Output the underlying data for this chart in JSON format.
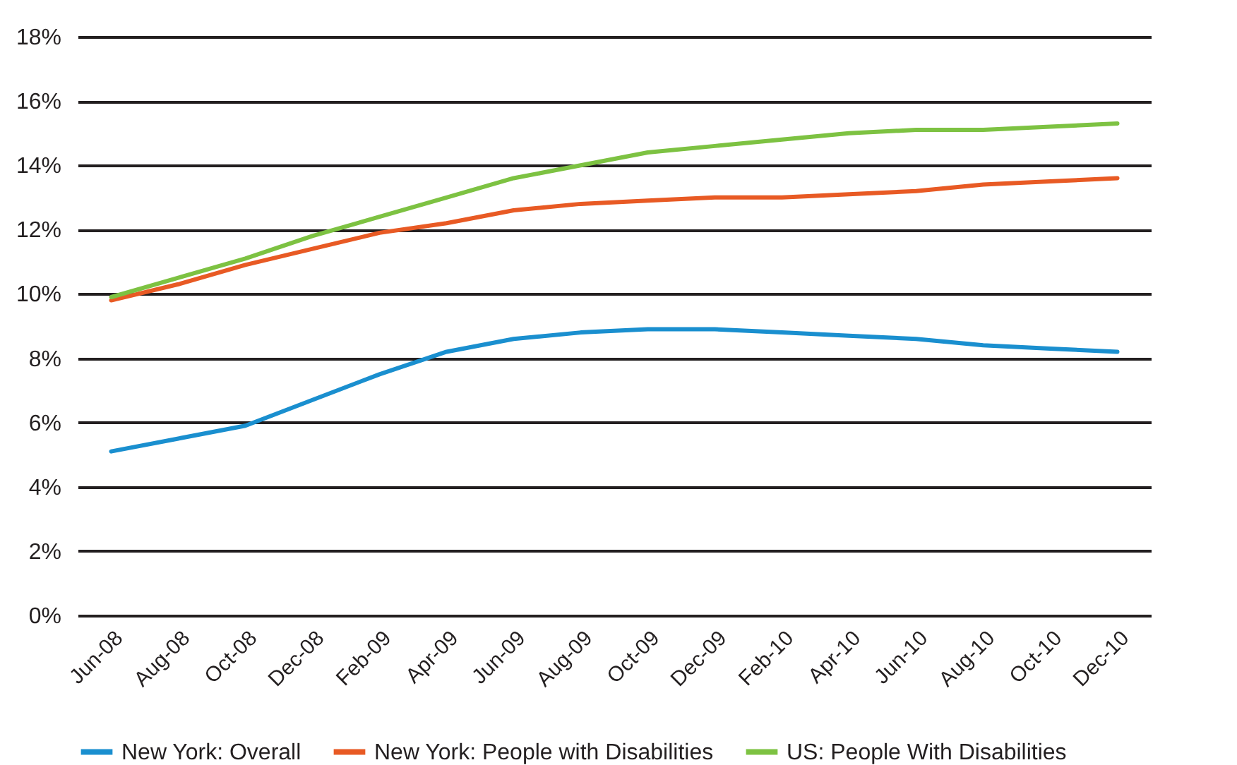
{
  "chart_data": {
    "type": "line",
    "categories": [
      "Jun-08",
      "Aug-08",
      "Oct-08",
      "Dec-08",
      "Feb-09",
      "Apr-09",
      "Jun-09",
      "Aug-09",
      "Oct-09",
      "Dec-09",
      "Feb-10",
      "Apr-10",
      "Jun-10",
      "Aug-10",
      "Oct-10",
      "Dec-10"
    ],
    "series": [
      {
        "name": "New York: Overall",
        "color": "#1a8fcf",
        "values": [
          5.1,
          5.5,
          5.9,
          6.7,
          7.5,
          8.2,
          8.6,
          8.8,
          8.9,
          8.9,
          8.8,
          8.7,
          8.6,
          8.4,
          8.3,
          8.2
        ]
      },
      {
        "name": "New York: People with Disabilities",
        "color": "#e85a24",
        "values": [
          9.8,
          10.3,
          10.9,
          11.4,
          11.9,
          12.2,
          12.6,
          12.8,
          12.9,
          13.0,
          13.0,
          13.1,
          13.2,
          13.4,
          13.5,
          13.6
        ]
      },
      {
        "name": "US: People With Disabilities",
        "color": "#7dc242",
        "values": [
          9.9,
          10.5,
          11.1,
          11.8,
          12.4,
          13.0,
          13.6,
          14.0,
          14.4,
          14.6,
          14.8,
          15.0,
          15.1,
          15.1,
          15.2,
          15.3
        ]
      }
    ],
    "ylim": [
      0,
      18
    ],
    "yticks": [
      {
        "value": 0,
        "label": "0%"
      },
      {
        "value": 2,
        "label": "2%"
      },
      {
        "value": 4,
        "label": "4%"
      },
      {
        "value": 6,
        "label": "6%"
      },
      {
        "value": 8,
        "label": "8%"
      },
      {
        "value": 10,
        "label": "10%"
      },
      {
        "value": 12,
        "label": "12%"
      },
      {
        "value": 14,
        "label": "14%"
      },
      {
        "value": 16,
        "label": "16%"
      },
      {
        "value": 18,
        "label": "18%"
      }
    ],
    "grid": "y",
    "legend": "bottom",
    "marker": "none",
    "line_style": "solid"
  }
}
